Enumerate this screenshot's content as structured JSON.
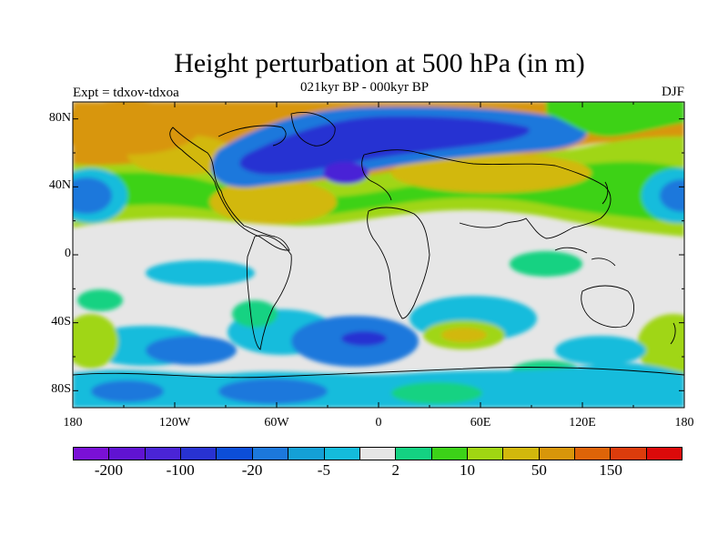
{
  "title": "Height perturbation at 500 hPa (in m)",
  "left_label": "Expt = tdxov-tdxoa",
  "center_label": "021kyr BP - 000kyr BP",
  "right_label": "DJF",
  "lat_labels": [
    "80N",
    "40N",
    "0",
    "40S",
    "80S"
  ],
  "lon_labels": [
    "180",
    "120W",
    "60W",
    "0",
    "60E",
    "120E",
    "180"
  ],
  "colorbar": {
    "colors": [
      "#7a10d6",
      "#6013d2",
      "#4a24d6",
      "#2832d2",
      "#0c4ed8",
      "#1c78dc",
      "#14a0d6",
      "#14bcdc",
      "#e6e6e6",
      "#14d282",
      "#3cd218",
      "#a0d612",
      "#d2b80c",
      "#d8960a",
      "#de6408",
      "#dc3c0c",
      "#dc0a0a"
    ],
    "labels": [
      "-200",
      "-100",
      "-20",
      "-5",
      "2",
      "10",
      "50",
      "150"
    ]
  },
  "map": {
    "lat_range": [
      -90,
      90
    ],
    "lon_range": [
      -180,
      180
    ],
    "background_color": "#e6e6e6"
  }
}
